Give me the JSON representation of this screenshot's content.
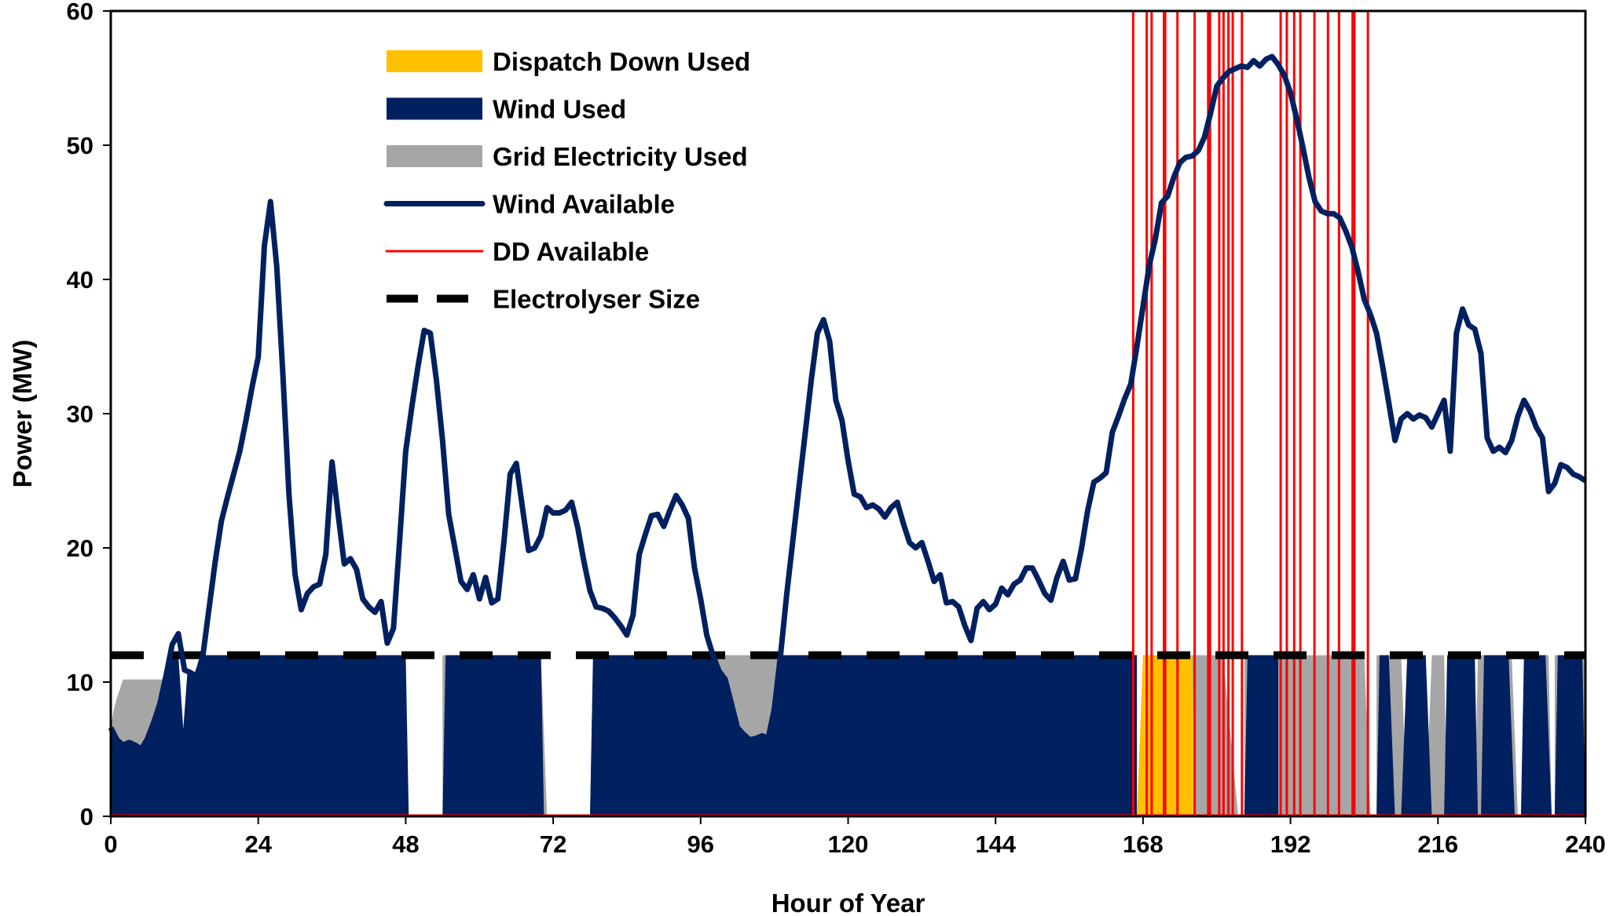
{
  "chart_data": {
    "type": "area",
    "xlabel": "Hour of Year",
    "ylabel": "Power (MW)",
    "xlim": [
      0,
      240
    ],
    "ylim": [
      0,
      60
    ],
    "xticks": [
      0,
      24,
      48,
      72,
      96,
      120,
      144,
      168,
      192,
      216,
      240
    ],
    "yticks": [
      0,
      10,
      20,
      30,
      40,
      50,
      60
    ],
    "grid": false,
    "legend_position": "top-left",
    "electrolyser_size": 12,
    "colors": {
      "dispatch_down_used": "#FFC000",
      "wind_used": "#002060",
      "grid_electricity_used": "#A6A6A6",
      "wind_available": "#002060",
      "dd_available": "#FF0000",
      "electrolyser_size": "#000000"
    },
    "legend": [
      {
        "key": "dispatch_down_used",
        "label": "Dispatch Down Used",
        "kind": "area"
      },
      {
        "key": "wind_used",
        "label": "Wind Used",
        "kind": "area"
      },
      {
        "key": "grid_electricity_used",
        "label": "Grid Electricity Used",
        "kind": "area"
      },
      {
        "key": "wind_available",
        "label": "Wind Available",
        "kind": "line"
      },
      {
        "key": "dd_available",
        "label": "DD Available",
        "kind": "line"
      },
      {
        "key": "electrolyser_size",
        "label": "Electrolyser Size",
        "kind": "dashed"
      }
    ],
    "wind_available": [
      [
        0,
        6.6
      ],
      [
        1,
        5.7
      ],
      [
        2,
        5.3
      ],
      [
        3,
        5.5
      ],
      [
        4,
        5.3
      ],
      [
        5,
        5.0
      ],
      [
        6,
        5.8
      ],
      [
        7,
        7.0
      ],
      [
        8,
        8.4
      ],
      [
        9,
        10.5
      ],
      [
        10,
        12.8
      ],
      [
        11,
        13.6
      ],
      [
        12,
        10.9
      ],
      [
        13,
        10.7
      ],
      [
        14,
        10.4
      ],
      [
        15,
        12.0
      ],
      [
        16,
        15.5
      ],
      [
        17,
        19.0
      ],
      [
        18,
        22.0
      ],
      [
        19,
        23.8
      ],
      [
        20,
        25.5
      ],
      [
        21,
        27.2
      ],
      [
        22,
        29.5
      ],
      [
        23,
        32.0
      ],
      [
        24,
        34.2
      ],
      [
        25,
        42.5
      ],
      [
        26,
        45.8
      ],
      [
        27,
        41.0
      ],
      [
        28,
        33.0
      ],
      [
        29,
        24.0
      ],
      [
        30,
        18.0
      ],
      [
        31,
        15.4
      ],
      [
        32,
        16.6
      ],
      [
        33,
        17.1
      ],
      [
        34,
        17.3
      ],
      [
        35,
        19.5
      ],
      [
        36,
        26.4
      ],
      [
        37,
        22.5
      ],
      [
        38,
        18.8
      ],
      [
        39,
        19.2
      ],
      [
        40,
        18.4
      ],
      [
        41,
        16.2
      ],
      [
        42,
        15.6
      ],
      [
        43,
        15.2
      ],
      [
        44,
        16.0
      ],
      [
        45,
        12.9
      ],
      [
        46,
        14.0
      ],
      [
        47,
        20.5
      ],
      [
        48,
        27.2
      ],
      [
        49,
        30.5
      ],
      [
        50,
        33.5
      ],
      [
        51,
        36.2
      ],
      [
        52,
        36.0
      ],
      [
        53,
        32.5
      ],
      [
        54,
        28.0
      ],
      [
        55,
        22.5
      ],
      [
        56,
        20.0
      ],
      [
        57,
        17.5
      ],
      [
        58,
        16.9
      ],
      [
        59,
        18.0
      ],
      [
        60,
        16.2
      ],
      [
        61,
        17.8
      ],
      [
        62,
        15.9
      ],
      [
        63,
        16.2
      ],
      [
        64,
        20.5
      ],
      [
        65,
        25.5
      ],
      [
        66,
        26.3
      ],
      [
        67,
        23.0
      ],
      [
        68,
        19.8
      ],
      [
        69,
        20.0
      ],
      [
        70,
        20.9
      ],
      [
        71,
        23.0
      ],
      [
        72,
        22.6
      ],
      [
        73,
        22.6
      ],
      [
        74,
        22.8
      ],
      [
        75,
        23.4
      ],
      [
        76,
        21.5
      ],
      [
        77,
        19.0
      ],
      [
        78,
        16.8
      ],
      [
        79,
        15.6
      ],
      [
        80,
        15.5
      ],
      [
        81,
        15.3
      ],
      [
        82,
        14.8
      ],
      [
        83,
        14.2
      ],
      [
        84,
        13.5
      ],
      [
        85,
        15.0
      ],
      [
        86,
        19.5
      ],
      [
        87,
        21.0
      ],
      [
        88,
        22.4
      ],
      [
        89,
        22.5
      ],
      [
        90,
        21.6
      ],
      [
        91,
        22.8
      ],
      [
        92,
        23.9
      ],
      [
        93,
        23.2
      ],
      [
        94,
        22.2
      ],
      [
        95,
        18.5
      ],
      [
        96,
        16.2
      ],
      [
        97,
        13.5
      ],
      [
        98,
        12.0
      ],
      [
        99,
        10.8
      ],
      [
        100,
        10.2
      ],
      [
        101,
        8.4
      ],
      [
        102,
        6.6
      ],
      [
        103,
        6.1
      ],
      [
        104,
        5.7
      ],
      [
        105,
        5.8
      ],
      [
        106,
        6.0
      ],
      [
        107,
        5.8
      ],
      [
        108,
        8.0
      ],
      [
        109,
        12.0
      ],
      [
        110,
        16.5
      ],
      [
        111,
        20.5
      ],
      [
        112,
        24.5
      ],
      [
        113,
        28.5
      ],
      [
        114,
        32.5
      ],
      [
        115,
        36.0
      ],
      [
        116,
        37.0
      ],
      [
        117,
        35.4
      ],
      [
        118,
        31.0
      ],
      [
        119,
        29.5
      ],
      [
        120,
        26.5
      ],
      [
        121,
        24.0
      ],
      [
        122,
        23.8
      ],
      [
        123,
        23.0
      ],
      [
        124,
        23.2
      ],
      [
        125,
        22.9
      ],
      [
        126,
        22.3
      ],
      [
        127,
        23.0
      ],
      [
        128,
        23.4
      ],
      [
        129,
        21.8
      ],
      [
        130,
        20.4
      ],
      [
        131,
        20.0
      ],
      [
        132,
        20.4
      ],
      [
        133,
        19.0
      ],
      [
        134,
        17.5
      ],
      [
        135,
        18.0
      ],
      [
        136,
        15.9
      ],
      [
        137,
        16.0
      ],
      [
        138,
        15.6
      ],
      [
        139,
        14.2
      ],
      [
        140,
        13.1
      ],
      [
        141,
        15.5
      ],
      [
        142,
        16.0
      ],
      [
        143,
        15.4
      ],
      [
        144,
        15.8
      ],
      [
        145,
        17.0
      ],
      [
        146,
        16.5
      ],
      [
        147,
        17.3
      ],
      [
        148,
        17.6
      ],
      [
        149,
        18.5
      ],
      [
        150,
        18.5
      ],
      [
        151,
        17.6
      ],
      [
        152,
        16.6
      ],
      [
        153,
        16.1
      ],
      [
        154,
        17.8
      ],
      [
        155,
        19.0
      ],
      [
        156,
        17.6
      ],
      [
        157,
        17.7
      ],
      [
        158,
        20.0
      ],
      [
        159,
        22.8
      ],
      [
        160,
        24.9
      ],
      [
        161,
        25.2
      ],
      [
        162,
        25.6
      ],
      [
        163,
        28.6
      ],
      [
        164,
        29.8
      ],
      [
        165,
        31.1
      ],
      [
        166,
        32.2
      ],
      [
        167,
        35.0
      ],
      [
        168,
        38.0
      ],
      [
        169,
        41.0
      ],
      [
        170,
        43.0
      ],
      [
        171,
        45.7
      ],
      [
        172,
        46.2
      ],
      [
        173,
        47.6
      ],
      [
        174,
        48.7
      ],
      [
        175,
        49.1
      ],
      [
        176,
        49.2
      ],
      [
        177,
        49.6
      ],
      [
        178,
        50.6
      ],
      [
        179,
        52.4
      ],
      [
        180,
        54.4
      ],
      [
        181,
        55.0
      ],
      [
        182,
        55.5
      ],
      [
        183,
        55.7
      ],
      [
        184,
        55.9
      ],
      [
        185,
        55.8
      ],
      [
        186,
        56.3
      ],
      [
        187,
        55.9
      ],
      [
        188,
        56.4
      ],
      [
        189,
        56.6
      ],
      [
        190,
        56.0
      ],
      [
        191,
        55.2
      ],
      [
        192,
        53.9
      ],
      [
        193,
        52.0
      ],
      [
        194,
        49.9
      ],
      [
        195,
        47.6
      ],
      [
        196,
        45.8
      ],
      [
        197,
        45.1
      ],
      [
        198,
        44.9
      ],
      [
        199,
        44.9
      ],
      [
        200,
        44.6
      ],
      [
        201,
        43.6
      ],
      [
        202,
        42.4
      ],
      [
        203,
        40.6
      ],
      [
        204,
        38.5
      ],
      [
        205,
        37.4
      ],
      [
        206,
        36.0
      ],
      [
        207,
        33.5
      ],
      [
        208,
        30.8
      ],
      [
        209,
        28.0
      ],
      [
        210,
        29.6
      ],
      [
        211,
        30.0
      ],
      [
        212,
        29.6
      ],
      [
        213,
        29.9
      ],
      [
        214,
        29.7
      ],
      [
        215,
        29.0
      ],
      [
        216,
        30.0
      ],
      [
        217,
        31.0
      ],
      [
        218,
        27.2
      ],
      [
        219,
        36.0
      ],
      [
        220,
        37.8
      ],
      [
        221,
        36.6
      ],
      [
        222,
        36.3
      ],
      [
        223,
        34.5
      ],
      [
        224,
        28.2
      ],
      [
        225,
        27.2
      ],
      [
        226,
        27.5
      ],
      [
        227,
        27.1
      ],
      [
        228,
        28.0
      ],
      [
        229,
        29.8
      ],
      [
        230,
        31.0
      ],
      [
        231,
        30.2
      ],
      [
        232,
        29.0
      ],
      [
        233,
        28.2
      ],
      [
        234,
        24.2
      ],
      [
        235,
        24.8
      ],
      [
        236,
        26.2
      ],
      [
        237,
        26.0
      ],
      [
        238,
        25.5
      ],
      [
        239,
        25.3
      ],
      [
        240,
        25.0
      ]
    ],
    "grid_electricity_used": [
      [
        0,
        6.6
      ],
      [
        0.5,
        8.0
      ],
      [
        1,
        8.8
      ],
      [
        2,
        10.2
      ],
      [
        9,
        10.2
      ],
      [
        9.8,
        10.9
      ],
      [
        11.8,
        6.5
      ],
      [
        12.5,
        10.9
      ],
      [
        13.5,
        10.7
      ],
      [
        15,
        12
      ],
      [
        48,
        12
      ],
      [
        48,
        0
      ],
      [
        54,
        0
      ],
      [
        54,
        12
      ],
      [
        70,
        12
      ],
      [
        71,
        0
      ],
      [
        78,
        0
      ],
      [
        78.5,
        12
      ],
      [
        166,
        12
      ],
      [
        167,
        0
      ],
      [
        168,
        0
      ],
      [
        168,
        12
      ],
      [
        181,
        12
      ],
      [
        183.5,
        0
      ],
      [
        184.5,
        0
      ],
      [
        184.5,
        12
      ],
      [
        204,
        12
      ],
      [
        205,
        0
      ],
      [
        206,
        0
      ],
      [
        206,
        12
      ],
      [
        210,
        12
      ],
      [
        211,
        0
      ],
      [
        214,
        0
      ],
      [
        215,
        12
      ],
      [
        217,
        12
      ],
      [
        217.5,
        0
      ],
      [
        222,
        0
      ],
      [
        222.5,
        12
      ],
      [
        228,
        12
      ],
      [
        229,
        0
      ],
      [
        230,
        0
      ],
      [
        230,
        12
      ],
      [
        234,
        12
      ],
      [
        234.5,
        0
      ],
      [
        235,
        0
      ],
      [
        235,
        12
      ],
      [
        240,
        12
      ],
      [
        240,
        0
      ],
      [
        0,
        0
      ]
    ],
    "wind_used": [
      [
        0,
        6.6
      ],
      [
        1,
        5.7
      ],
      [
        2,
        5.3
      ],
      [
        3,
        5.5
      ],
      [
        4,
        5.3
      ],
      [
        5,
        5.0
      ],
      [
        6,
        5.8
      ],
      [
        7,
        7.0
      ],
      [
        8,
        8.4
      ],
      [
        9,
        10.5
      ],
      [
        10,
        12.0
      ],
      [
        11,
        12.0
      ],
      [
        11.8,
        6.5
      ],
      [
        12.5,
        10.9
      ],
      [
        13,
        10.7
      ],
      [
        14,
        10.4
      ],
      [
        15,
        12.0
      ],
      [
        48,
        12
      ],
      [
        48.5,
        0
      ],
      [
        54,
        0
      ],
      [
        54.5,
        12
      ],
      [
        70,
        12
      ],
      [
        70.5,
        0
      ],
      [
        78,
        0
      ],
      [
        78.5,
        12
      ],
      [
        97,
        12
      ],
      [
        98,
        12
      ],
      [
        99,
        10.8
      ],
      [
        100,
        10.2
      ],
      [
        101,
        8.4
      ],
      [
        102,
        6.6
      ],
      [
        103,
        6.1
      ],
      [
        104,
        5.7
      ],
      [
        105,
        5.8
      ],
      [
        106,
        6.0
      ],
      [
        107,
        5.8
      ],
      [
        108,
        8.0
      ],
      [
        109,
        12
      ],
      [
        167,
        12
      ],
      [
        167,
        0
      ],
      [
        184.5,
        0
      ],
      [
        185,
        12
      ],
      [
        190,
        12
      ],
      [
        190,
        0
      ],
      [
        206,
        0
      ],
      [
        206.5,
        12
      ],
      [
        208,
        12
      ],
      [
        209,
        0
      ],
      [
        210,
        0
      ],
      [
        211,
        12
      ],
      [
        214,
        12
      ],
      [
        215,
        0
      ],
      [
        217,
        0
      ],
      [
        217.5,
        12
      ],
      [
        222,
        12
      ],
      [
        222.5,
        0
      ],
      [
        223,
        0
      ],
      [
        223.5,
        12
      ],
      [
        227.5,
        12
      ],
      [
        228.5,
        0
      ],
      [
        229.5,
        0
      ],
      [
        230,
        12
      ],
      [
        233.5,
        12
      ],
      [
        234.5,
        0
      ],
      [
        235,
        0
      ],
      [
        235.5,
        12
      ],
      [
        239.5,
        12
      ],
      [
        240,
        0
      ],
      [
        0,
        0
      ]
    ],
    "dispatch_down_used": [
      [
        167,
        0
      ],
      [
        168,
        12
      ],
      [
        176,
        12
      ],
      [
        176.5,
        0
      ]
    ],
    "dd_available_hours": [
      167.5,
      170.5,
      172.5,
      177.5,
      180,
      181.5,
      183,
      191.5,
      192.5,
      197,
      201,
      203.5
    ]
  }
}
